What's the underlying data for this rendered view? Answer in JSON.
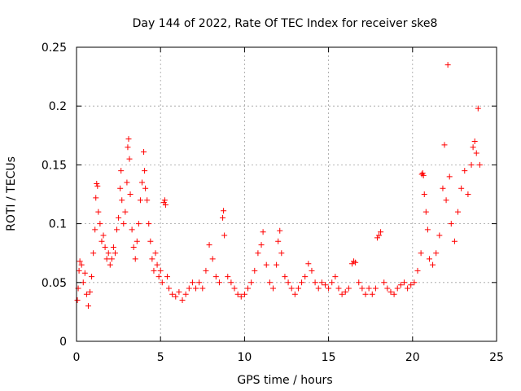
{
  "chart_data": {
    "type": "scatter",
    "title": "Day 144 of 2022, Rate Of TEC Index for receiver ske8",
    "xlabel": "GPS time / hours",
    "ylabel": "ROTI / TECUs",
    "xlim": [
      0,
      25
    ],
    "ylim": [
      0,
      0.25
    ],
    "xticks": [
      0,
      5,
      10,
      15,
      20,
      25
    ],
    "xtick_labels": [
      "0",
      "5",
      "10",
      "15",
      "20",
      "25"
    ],
    "yticks": [
      0,
      0.05,
      0.1,
      0.15,
      0.2,
      0.25
    ],
    "ytick_labels": [
      "0",
      "0.05",
      "0.1",
      "0.15",
      "0.2",
      "0.25"
    ],
    "grid": true,
    "marker": "+",
    "series": [
      {
        "name": "ROTI",
        "color": "#ff0000",
        "points": [
          [
            0.05,
            0.035
          ],
          [
            0.1,
            0.045
          ],
          [
            0.15,
            0.06
          ],
          [
            0.2,
            0.068
          ],
          [
            0.3,
            0.065
          ],
          [
            0.4,
            0.05
          ],
          [
            0.5,
            0.058
          ],
          [
            0.6,
            0.04
          ],
          [
            0.7,
            0.03
          ],
          [
            0.8,
            0.042
          ],
          [
            0.9,
            0.055
          ],
          [
            1.0,
            0.075
          ],
          [
            1.1,
            0.095
          ],
          [
            1.15,
            0.122
          ],
          [
            1.2,
            0.134
          ],
          [
            1.25,
            0.132
          ],
          [
            1.3,
            0.11
          ],
          [
            1.4,
            0.1
          ],
          [
            1.5,
            0.085
          ],
          [
            1.6,
            0.09
          ],
          [
            1.7,
            0.08
          ],
          [
            1.8,
            0.07
          ],
          [
            1.9,
            0.075
          ],
          [
            2.0,
            0.065
          ],
          [
            2.1,
            0.07
          ],
          [
            2.2,
            0.08
          ],
          [
            2.3,
            0.075
          ],
          [
            2.4,
            0.095
          ],
          [
            2.5,
            0.105
          ],
          [
            2.6,
            0.13
          ],
          [
            2.65,
            0.145
          ],
          [
            2.7,
            0.12
          ],
          [
            2.8,
            0.1
          ],
          [
            2.9,
            0.11
          ],
          [
            3.0,
            0.135
          ],
          [
            3.05,
            0.165
          ],
          [
            3.1,
            0.172
          ],
          [
            3.15,
            0.155
          ],
          [
            3.2,
            0.125
          ],
          [
            3.3,
            0.095
          ],
          [
            3.4,
            0.08
          ],
          [
            3.5,
            0.07
          ],
          [
            3.6,
            0.085
          ],
          [
            3.7,
            0.1
          ],
          [
            3.8,
            0.12
          ],
          [
            3.9,
            0.135
          ],
          [
            4.0,
            0.161
          ],
          [
            4.05,
            0.145
          ],
          [
            4.1,
            0.13
          ],
          [
            4.2,
            0.12
          ],
          [
            4.3,
            0.1
          ],
          [
            4.4,
            0.085
          ],
          [
            4.5,
            0.07
          ],
          [
            4.6,
            0.06
          ],
          [
            4.7,
            0.075
          ],
          [
            4.8,
            0.065
          ],
          [
            4.9,
            0.055
          ],
          [
            5.0,
            0.06
          ],
          [
            5.1,
            0.05
          ],
          [
            5.2,
            0.118
          ],
          [
            5.25,
            0.12
          ],
          [
            5.3,
            0.116
          ],
          [
            5.4,
            0.055
          ],
          [
            5.5,
            0.045
          ],
          [
            5.7,
            0.04
          ],
          [
            5.9,
            0.038
          ],
          [
            6.1,
            0.042
          ],
          [
            6.3,
            0.035
          ],
          [
            6.5,
            0.04
          ],
          [
            6.7,
            0.045
          ],
          [
            6.9,
            0.05
          ],
          [
            7.1,
            0.045
          ],
          [
            7.3,
            0.05
          ],
          [
            7.5,
            0.045
          ],
          [
            7.7,
            0.06
          ],
          [
            7.9,
            0.082
          ],
          [
            8.1,
            0.07
          ],
          [
            8.3,
            0.055
          ],
          [
            8.5,
            0.05
          ],
          [
            8.7,
            0.105
          ],
          [
            8.75,
            0.111
          ],
          [
            8.8,
            0.09
          ],
          [
            9.0,
            0.055
          ],
          [
            9.2,
            0.05
          ],
          [
            9.4,
            0.045
          ],
          [
            9.6,
            0.04
          ],
          [
            9.8,
            0.038
          ],
          [
            10.0,
            0.04
          ],
          [
            10.2,
            0.045
          ],
          [
            10.4,
            0.05
          ],
          [
            10.6,
            0.06
          ],
          [
            10.8,
            0.075
          ],
          [
            11.0,
            0.082
          ],
          [
            11.1,
            0.093
          ],
          [
            11.3,
            0.065
          ],
          [
            11.5,
            0.05
          ],
          [
            11.7,
            0.045
          ],
          [
            11.9,
            0.065
          ],
          [
            12.0,
            0.085
          ],
          [
            12.1,
            0.094
          ],
          [
            12.2,
            0.075
          ],
          [
            12.4,
            0.055
          ],
          [
            12.6,
            0.05
          ],
          [
            12.8,
            0.045
          ],
          [
            13.0,
            0.04
          ],
          [
            13.2,
            0.045
          ],
          [
            13.4,
            0.05
          ],
          [
            13.6,
            0.055
          ],
          [
            13.8,
            0.066
          ],
          [
            14.0,
            0.06
          ],
          [
            14.2,
            0.05
          ],
          [
            14.4,
            0.045
          ],
          [
            14.6,
            0.05
          ],
          [
            14.8,
            0.048
          ],
          [
            15.0,
            0.045
          ],
          [
            15.2,
            0.05
          ],
          [
            15.4,
            0.055
          ],
          [
            15.6,
            0.045
          ],
          [
            15.8,
            0.04
          ],
          [
            16.0,
            0.042
          ],
          [
            16.2,
            0.045
          ],
          [
            16.4,
            0.066
          ],
          [
            16.5,
            0.068
          ],
          [
            16.6,
            0.067
          ],
          [
            16.8,
            0.05
          ],
          [
            17.0,
            0.045
          ],
          [
            17.2,
            0.04
          ],
          [
            17.4,
            0.045
          ],
          [
            17.6,
            0.04
          ],
          [
            17.8,
            0.045
          ],
          [
            17.9,
            0.088
          ],
          [
            18.0,
            0.09
          ],
          [
            18.1,
            0.093
          ],
          [
            18.3,
            0.05
          ],
          [
            18.5,
            0.045
          ],
          [
            18.7,
            0.042
          ],
          [
            18.9,
            0.04
          ],
          [
            19.1,
            0.045
          ],
          [
            19.3,
            0.048
          ],
          [
            19.5,
            0.05
          ],
          [
            19.7,
            0.045
          ],
          [
            19.9,
            0.048
          ],
          [
            20.1,
            0.05
          ],
          [
            20.3,
            0.06
          ],
          [
            20.5,
            0.075
          ],
          [
            20.55,
            0.142
          ],
          [
            20.6,
            0.143
          ],
          [
            20.65,
            0.141
          ],
          [
            20.7,
            0.125
          ],
          [
            20.8,
            0.11
          ],
          [
            20.9,
            0.095
          ],
          [
            21.0,
            0.07
          ],
          [
            21.2,
            0.065
          ],
          [
            21.4,
            0.075
          ],
          [
            21.6,
            0.09
          ],
          [
            21.8,
            0.13
          ],
          [
            21.9,
            0.167
          ],
          [
            22.0,
            0.12
          ],
          [
            22.1,
            0.235
          ],
          [
            22.2,
            0.14
          ],
          [
            22.3,
            0.1
          ],
          [
            22.5,
            0.085
          ],
          [
            22.7,
            0.11
          ],
          [
            22.9,
            0.13
          ],
          [
            23.1,
            0.145
          ],
          [
            23.3,
            0.125
          ],
          [
            23.5,
            0.15
          ],
          [
            23.6,
            0.165
          ],
          [
            23.7,
            0.17
          ],
          [
            23.8,
            0.16
          ],
          [
            23.9,
            0.198
          ],
          [
            24.0,
            0.15
          ]
        ]
      }
    ]
  }
}
